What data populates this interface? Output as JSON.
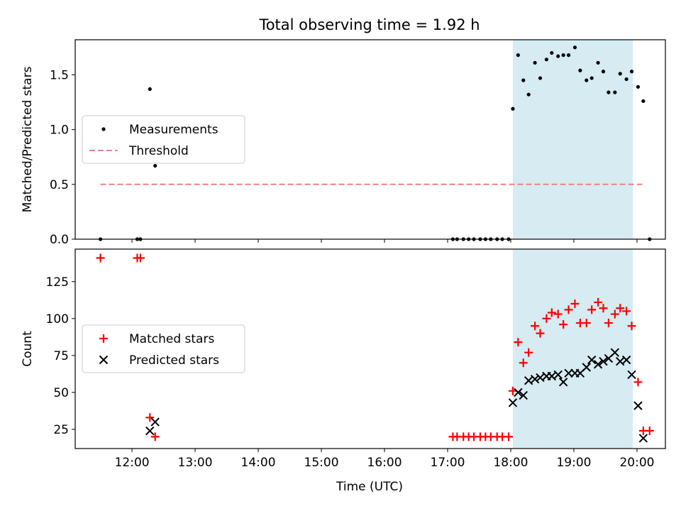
{
  "figure": {
    "title": "Total observing time = 1.92 h",
    "xlabel": "Time (UTC)",
    "xticks": [
      "12:00",
      "13:00",
      "14:00",
      "15:00",
      "16:00",
      "17:00",
      "18:00",
      "19:00",
      "20:00"
    ],
    "shaded_interval": [
      "18:02",
      "19:56"
    ],
    "colors": {
      "measurements": "#000000",
      "threshold": "#f08080",
      "matched": "#ff0000",
      "predicted": "#000000",
      "shade": "#add8e6"
    }
  },
  "chart_data": [
    {
      "type": "scatter",
      "ylabel": "Matched/Predicted stars",
      "xlim": [
        "11:06",
        "20:27"
      ],
      "ylim": [
        0,
        1.82
      ],
      "yticks": [
        "0.0",
        "0.5",
        "1.0",
        "1.5"
      ],
      "legend_position": "center-left",
      "series": [
        {
          "name": "Measurements",
          "marker": "dot",
          "points": [
            [
              "11:30",
              0.0
            ],
            [
              "12:05",
              0.0
            ],
            [
              "12:08",
              0.0
            ],
            [
              "12:17",
              1.37
            ],
            [
              "12:22",
              0.67
            ],
            [
              "17:05",
              0.0
            ],
            [
              "17:09",
              0.0
            ],
            [
              "17:15",
              0.0
            ],
            [
              "17:20",
              0.0
            ],
            [
              "17:25",
              0.0
            ],
            [
              "17:31",
              0.0
            ],
            [
              "17:36",
              0.0
            ],
            [
              "17:41",
              0.0
            ],
            [
              "17:47",
              0.0
            ],
            [
              "17:52",
              0.0
            ],
            [
              "17:58",
              0.0
            ],
            [
              "18:02",
              1.19
            ],
            [
              "18:07",
              1.68
            ],
            [
              "18:12",
              1.45
            ],
            [
              "18:17",
              1.32
            ],
            [
              "18:23",
              1.61
            ],
            [
              "18:28",
              1.47
            ],
            [
              "18:34",
              1.64
            ],
            [
              "18:39",
              1.7
            ],
            [
              "18:45",
              1.67
            ],
            [
              "18:50",
              1.68
            ],
            [
              "18:55",
              1.68
            ],
            [
              "19:01",
              1.75
            ],
            [
              "19:06",
              1.54
            ],
            [
              "19:12",
              1.45
            ],
            [
              "19:17",
              1.47
            ],
            [
              "19:23",
              1.61
            ],
            [
              "19:28",
              1.53
            ],
            [
              "19:33",
              1.34
            ],
            [
              "19:39",
              1.34
            ],
            [
              "19:44",
              1.51
            ],
            [
              "19:50",
              1.46
            ],
            [
              "19:55",
              1.53
            ],
            [
              "20:01",
              1.39
            ],
            [
              "20:06",
              1.26
            ],
            [
              "20:12",
              0.0
            ]
          ]
        },
        {
          "name": "Threshold",
          "marker": "dashed-line",
          "line": [
            [
              "11:30",
              0.5
            ],
            [
              "20:06",
              0.5
            ]
          ]
        }
      ]
    },
    {
      "type": "scatter",
      "ylabel": "Count",
      "xlim": [
        "11:06",
        "20:27"
      ],
      "ylim": [
        12,
        147
      ],
      "yticks": [
        "25",
        "50",
        "75",
        "100",
        "125"
      ],
      "legend_position": "center-left",
      "series": [
        {
          "name": "Matched stars",
          "marker": "plus",
          "points": [
            [
              "11:30",
              141
            ],
            [
              "12:05",
              141
            ],
            [
              "12:08",
              141
            ],
            [
              "12:17",
              33
            ],
            [
              "12:22",
              20
            ],
            [
              "17:05",
              20
            ],
            [
              "17:09",
              20
            ],
            [
              "17:15",
              20
            ],
            [
              "17:20",
              20
            ],
            [
              "17:25",
              20
            ],
            [
              "17:31",
              20
            ],
            [
              "17:36",
              20
            ],
            [
              "17:41",
              20
            ],
            [
              "17:47",
              20
            ],
            [
              "17:52",
              20
            ],
            [
              "17:58",
              20
            ],
            [
              "18:02",
              51
            ],
            [
              "18:07",
              84
            ],
            [
              "18:12",
              70
            ],
            [
              "18:17",
              77
            ],
            [
              "18:23",
              95
            ],
            [
              "18:28",
              90
            ],
            [
              "18:34",
              100
            ],
            [
              "18:39",
              104
            ],
            [
              "18:45",
              103
            ],
            [
              "18:50",
              96
            ],
            [
              "18:55",
              106
            ],
            [
              "19:01",
              110
            ],
            [
              "19:06",
              97
            ],
            [
              "19:12",
              97
            ],
            [
              "19:17",
              106
            ],
            [
              "19:23",
              111
            ],
            [
              "19:28",
              107
            ],
            [
              "19:33",
              97
            ],
            [
              "19:39",
              103
            ],
            [
              "19:44",
              107
            ],
            [
              "19:50",
              105
            ],
            [
              "19:55",
              95
            ],
            [
              "20:01",
              57
            ],
            [
              "20:06",
              24
            ],
            [
              "20:12",
              24
            ]
          ]
        },
        {
          "name": "Predicted stars",
          "marker": "x",
          "points": [
            [
              "12:17",
              24
            ],
            [
              "12:22",
              30
            ],
            [
              "18:02",
              43
            ],
            [
              "18:07",
              50
            ],
            [
              "18:12",
              48
            ],
            [
              "18:17",
              58
            ],
            [
              "18:23",
              59
            ],
            [
              "18:28",
              60
            ],
            [
              "18:34",
              61
            ],
            [
              "18:39",
              61
            ],
            [
              "18:45",
              62
            ],
            [
              "18:50",
              57
            ],
            [
              "18:55",
              63
            ],
            [
              "19:01",
              63
            ],
            [
              "19:06",
              63
            ],
            [
              "19:12",
              67
            ],
            [
              "19:17",
              72
            ],
            [
              "19:23",
              69
            ],
            [
              "19:28",
              71
            ],
            [
              "19:33",
              73
            ],
            [
              "19:39",
              77
            ],
            [
              "19:44",
              71
            ],
            [
              "19:50",
              72
            ],
            [
              "19:55",
              62
            ],
            [
              "20:01",
              41
            ],
            [
              "20:06",
              19
            ]
          ]
        }
      ]
    }
  ]
}
